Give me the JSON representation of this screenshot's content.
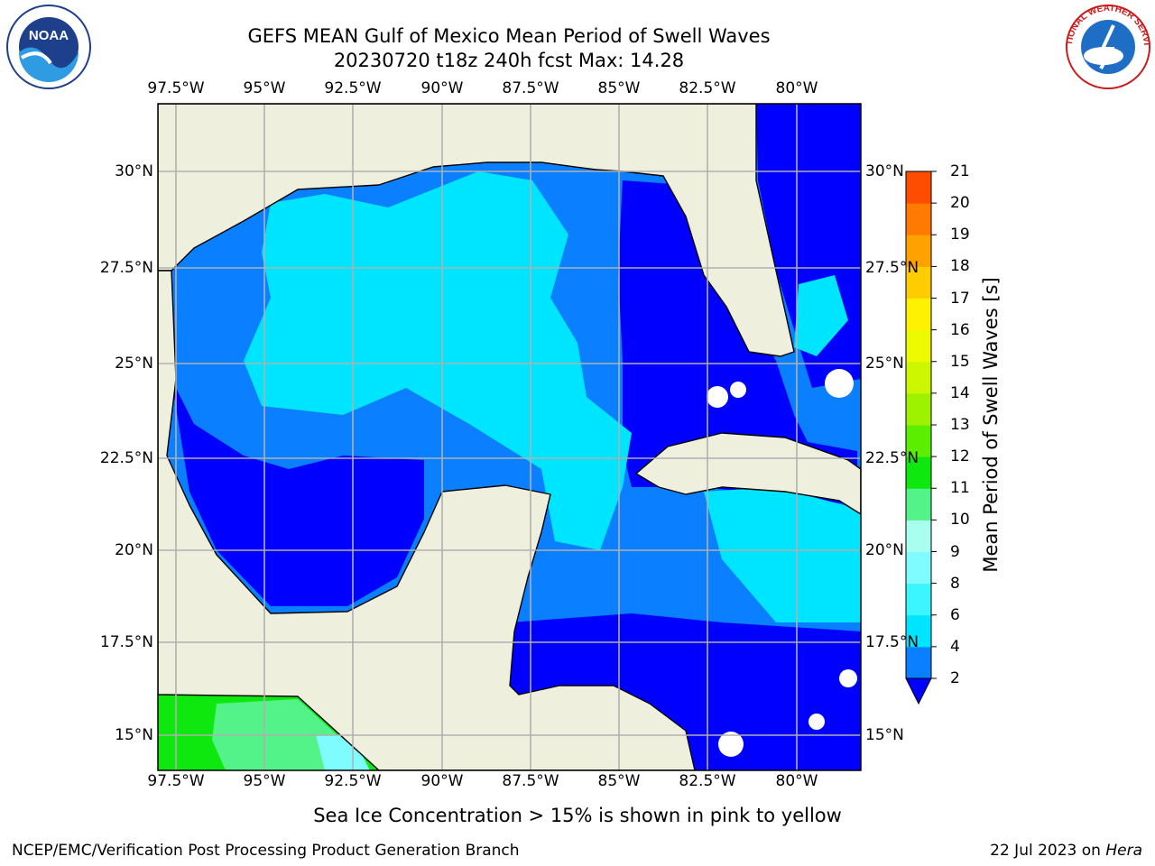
{
  "title_line1": "GEFS MEAN Gulf of Mexico Mean Period of Swell Waves",
  "title_line2": "20230720 t18z 240h fcst   Max: 14.28",
  "lon_ticks": [
    "97.5°W",
    "95°W",
    "92.5°W",
    "90°W",
    "87.5°W",
    "85°W",
    "82.5°W",
    "80°W"
  ],
  "lat_ticks": [
    "30°N",
    "27.5°N",
    "25°N",
    "22.5°N",
    "20°N",
    "17.5°N",
    "15°N"
  ],
  "colorbar": {
    "label": "Mean Period of Swell Waves [s]",
    "levels": [
      "2",
      "4",
      "6",
      "8",
      "9",
      "10",
      "11",
      "12",
      "13",
      "14",
      "15",
      "16",
      "17",
      "18",
      "19",
      "20",
      "21"
    ],
    "colors": [
      "#0a7fff",
      "#00e5ff",
      "#3bf5ff",
      "#7ffcff",
      "#a8fff0",
      "#54f38a",
      "#0ee80e",
      "#5cee00",
      "#9ef200",
      "#ccf700",
      "#eefa00",
      "#fff200",
      "#ffcc00",
      "#ffa200",
      "#ff7a00",
      "#ff4d00",
      "#ff1a00",
      "#ff0000"
    ],
    "under_color": "#0000ff"
  },
  "colors": {
    "land": "#efefde",
    "ocean_deep": "#0000ff",
    "ocean_mid": "#0a7fff",
    "ocean_light": "#00e5ff",
    "grid": "#b0b0b0"
  },
  "logos": {
    "left_text": "NOAA",
    "right_text": "NATIONAL WEATHER SERVICE"
  },
  "note": "Sea Ice Concentration > 15% is shown in pink to yellow",
  "footer_left": "NCEP/EMC/Verification Post Processing Product Generation Branch",
  "footer_right_prefix": "22 Jul 2023 on ",
  "footer_right_host": "Hera"
}
